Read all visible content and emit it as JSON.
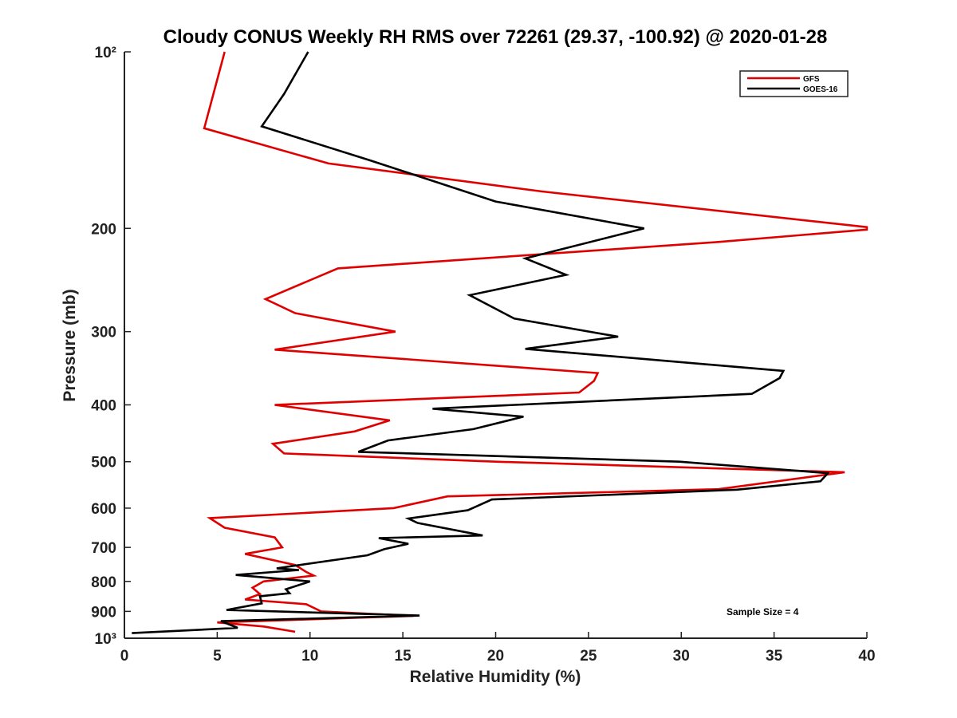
{
  "chart_data": {
    "type": "line",
    "title": "Cloudy CONUS Weekly RH RMS over 72261 (29.37, -100.92) @ 2020-01-28",
    "xlabel": "Relative Humidity (%)",
    "ylabel": "Pressure (mb)",
    "xlim": [
      0,
      40
    ],
    "ylim": [
      100,
      1000
    ],
    "y_scale": "log",
    "y_reversed": true,
    "grid": false,
    "legend_position": "top-right",
    "x_ticks": [
      0,
      5,
      10,
      15,
      20,
      25,
      30,
      35,
      40
    ],
    "x_tick_labels": [
      "0",
      "5",
      "10",
      "15",
      "20",
      "25",
      "30",
      "35",
      "40"
    ],
    "y_ticks": [
      100,
      200,
      300,
      400,
      500,
      600,
      700,
      800,
      900,
      1000
    ],
    "y_tick_labels": [
      "10²",
      "200",
      "300",
      "400",
      "500",
      "600",
      "700",
      "800",
      "900",
      "10³"
    ],
    "annotation": "Sample Size = 4",
    "series": [
      {
        "name": "GFS",
        "color": "#e00000",
        "points": [
          [
            5.4,
            100
          ],
          [
            4.3,
            135
          ],
          [
            11.0,
            155
          ],
          [
            22.5,
            173
          ],
          [
            40.0,
            199
          ],
          [
            40.0,
            201
          ],
          [
            32.0,
            211
          ],
          [
            11.5,
            234
          ],
          [
            7.6,
            264
          ],
          [
            9.2,
            279
          ],
          [
            14.6,
            300
          ],
          [
            8.1,
            322
          ],
          [
            25.5,
            353
          ],
          [
            25.3,
            364
          ],
          [
            24.5,
            381
          ],
          [
            8.1,
            400
          ],
          [
            14.3,
            425
          ],
          [
            12.4,
            444
          ],
          [
            8.0,
            466
          ],
          [
            8.6,
            484
          ],
          [
            20.0,
            500
          ],
          [
            38.8,
            521
          ],
          [
            32.0,
            557
          ],
          [
            17.4,
            573
          ],
          [
            14.5,
            600
          ],
          [
            4.6,
            624
          ],
          [
            5.4,
            648
          ],
          [
            8.1,
            673
          ],
          [
            8.5,
            700
          ],
          [
            6.5,
            718
          ],
          [
            9.2,
            750
          ],
          [
            9.8,
            771
          ],
          [
            10.2,
            782
          ],
          [
            7.5,
            800
          ],
          [
            6.9,
            820
          ],
          [
            7.3,
            841
          ],
          [
            6.5,
            859
          ],
          [
            9.8,
            875
          ],
          [
            10.6,
            900
          ],
          [
            15.6,
            916
          ],
          [
            5.0,
            940
          ],
          [
            7.5,
            955
          ],
          [
            9.2,
            975
          ]
        ]
      },
      {
        "name": "GOES-16",
        "color": "#000000",
        "points": [
          [
            9.9,
            100
          ],
          [
            8.6,
            118
          ],
          [
            7.4,
            134
          ],
          [
            13.2,
            153
          ],
          [
            20.0,
            180
          ],
          [
            28.0,
            200
          ],
          [
            21.6,
            225
          ],
          [
            23.8,
            240
          ],
          [
            18.6,
            260
          ],
          [
            21.0,
            285
          ],
          [
            26.6,
            306
          ],
          [
            21.6,
            321
          ],
          [
            35.5,
            350
          ],
          [
            35.3,
            360
          ],
          [
            33.8,
            383
          ],
          [
            16.6,
            406
          ],
          [
            21.5,
            419
          ],
          [
            18.8,
            440
          ],
          [
            14.2,
            460
          ],
          [
            12.6,
            481
          ],
          [
            29.9,
            500
          ],
          [
            37.9,
            523
          ],
          [
            37.5,
            540
          ],
          [
            33.0,
            558
          ],
          [
            19.8,
            580
          ],
          [
            18.5,
            605
          ],
          [
            15.3,
            625
          ],
          [
            15.8,
            636
          ],
          [
            19.3,
            668
          ],
          [
            13.7,
            675
          ],
          [
            15.3,
            690
          ],
          [
            14.0,
            705
          ],
          [
            13.1,
            722
          ],
          [
            8.2,
            760
          ],
          [
            9.4,
            765
          ],
          [
            6.0,
            780
          ],
          [
            10.0,
            800
          ],
          [
            8.7,
            825
          ],
          [
            8.9,
            838
          ],
          [
            7.3,
            848
          ],
          [
            7.4,
            872
          ],
          [
            5.5,
            895
          ],
          [
            15.9,
            915
          ],
          [
            5.2,
            935
          ],
          [
            6.1,
            960
          ],
          [
            0.4,
            980
          ]
        ]
      }
    ]
  }
}
